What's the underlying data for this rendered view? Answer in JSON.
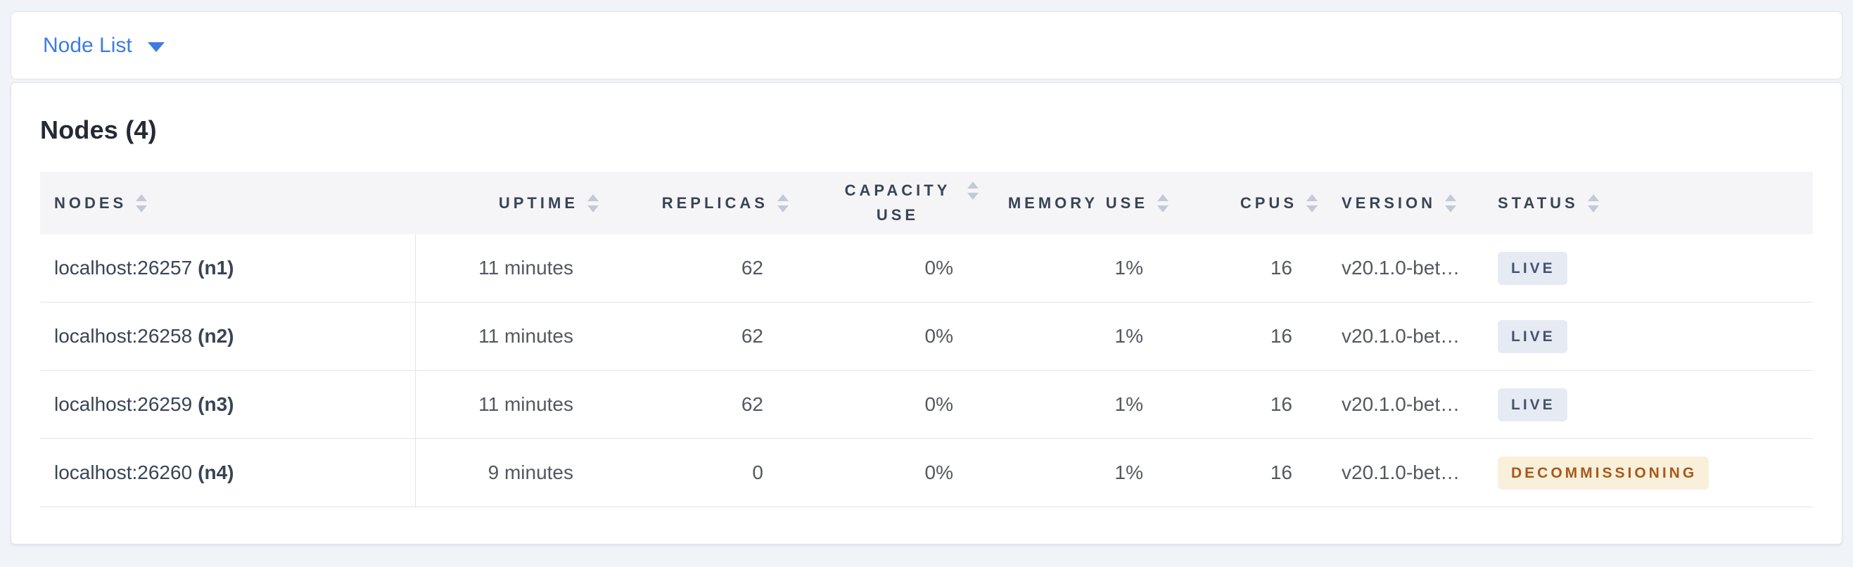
{
  "nav": {
    "dropdown_label": "Node List"
  },
  "main": {
    "title": "Nodes (4)",
    "table": {
      "columns": [
        {
          "id": "nodes",
          "label": "NODES",
          "align": "left",
          "sortable": true
        },
        {
          "id": "uptime",
          "label": "UPTIME",
          "align": "right",
          "sortable": true
        },
        {
          "id": "replicas",
          "label": "REPLICAS",
          "align": "right",
          "sortable": true
        },
        {
          "id": "capacity_use",
          "label": "CAPACITY USE",
          "align": "right",
          "sortable": true,
          "wrapped": true
        },
        {
          "id": "memory_use",
          "label": "MEMORY USE",
          "align": "right",
          "sortable": true
        },
        {
          "id": "cpus",
          "label": "CPUS",
          "align": "right",
          "sortable": true
        },
        {
          "id": "version",
          "label": "VERSION",
          "align": "left",
          "sortable": true
        },
        {
          "id": "status",
          "label": "STATUS",
          "align": "left",
          "sortable": true
        }
      ],
      "rows": [
        {
          "node_address": "localhost:26257",
          "node_id": "(n1)",
          "uptime": "11 minutes",
          "replicas": "62",
          "capacity_use": "0%",
          "memory_use": "1%",
          "cpus": "16",
          "version": "v20.1.0-bet…",
          "status": "LIVE",
          "status_type": "live"
        },
        {
          "node_address": "localhost:26258",
          "node_id": "(n2)",
          "uptime": "11 minutes",
          "replicas": "62",
          "capacity_use": "0%",
          "memory_use": "1%",
          "cpus": "16",
          "version": "v20.1.0-bet…",
          "status": "LIVE",
          "status_type": "live"
        },
        {
          "node_address": "localhost:26259",
          "node_id": "(n3)",
          "uptime": "11 minutes",
          "replicas": "62",
          "capacity_use": "0%",
          "memory_use": "1%",
          "cpus": "16",
          "version": "v20.1.0-bet…",
          "status": "LIVE",
          "status_type": "live"
        },
        {
          "node_address": "localhost:26260",
          "node_id": "(n4)",
          "uptime": "9 minutes",
          "replicas": "0",
          "capacity_use": "0%",
          "memory_use": "1%",
          "cpus": "16",
          "version": "v20.1.0-bet…",
          "status": "DECOMMISSIONING",
          "status_type": "decommissioning"
        }
      ]
    }
  },
  "colors": {
    "accent_blue": "#3e7ce0",
    "page_background": "#f0f3f8",
    "header_row_background": "#f5f5f7",
    "badge_live_background": "#e6eaf2",
    "badge_live_text": "#44536e",
    "badge_decommissioning_background": "#f9f0db",
    "badge_decommissioning_text": "#a55a1b"
  }
}
